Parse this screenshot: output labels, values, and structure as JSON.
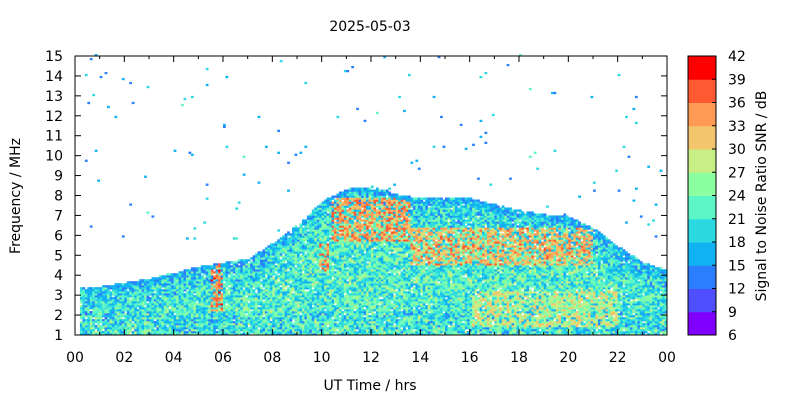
{
  "chart_data": {
    "type": "heatmap",
    "title": "2025-05-03",
    "xlabel": "UT Time / hrs",
    "ylabel": "Frequency / MHz",
    "colorbar_label": "Signal to Noise Ratio SNR / dB",
    "xlim": [
      0,
      24
    ],
    "ylim": [
      1,
      15
    ],
    "x_ticks": [
      "00",
      "02",
      "04",
      "06",
      "08",
      "10",
      "12",
      "14",
      "16",
      "18",
      "20",
      "22",
      "00"
    ],
    "y_ticks": [
      "1",
      "2",
      "3",
      "4",
      "5",
      "6",
      "7",
      "8",
      "9",
      "10",
      "11",
      "12",
      "13",
      "14",
      "15"
    ],
    "colorbar": {
      "min": 6,
      "max": 42,
      "ticks": [
        "6",
        "9",
        "12",
        "15",
        "18",
        "21",
        "24",
        "27",
        "30",
        "33",
        "36",
        "39",
        "42"
      ],
      "colors": [
        "#7f00ff",
        "#4f4fff",
        "#2a7fff",
        "#12b2f2",
        "#2cd9e0",
        "#5cf5c6",
        "#8cffa0",
        "#c8ee86",
        "#f3c66c",
        "#ff9a52",
        "#ff5a32",
        "#ff0000"
      ]
    },
    "grid": false,
    "upper_frequency_envelope_mhz": {
      "hours": [
        0,
        1,
        2,
        3,
        4,
        5,
        6,
        7,
        8,
        9,
        10,
        11,
        12,
        13,
        14,
        15,
        16,
        17,
        18,
        19,
        20,
        21,
        22,
        23,
        24
      ],
      "values": [
        3.3,
        3.4,
        3.6,
        3.8,
        4.1,
        4.4,
        4.6,
        4.8,
        5.6,
        6.5,
        7.7,
        8.3,
        8.4,
        8.0,
        7.8,
        7.8,
        7.8,
        7.5,
        7.2,
        7.0,
        6.9,
        6.3,
        5.4,
        4.6,
        4.2
      ]
    },
    "high_snr_regions": [
      {
        "hours": [
          5.4,
          5.9
        ],
        "mhz": [
          2.2,
          4.8
        ],
        "snr_db": 40
      },
      {
        "hours": [
          9.8,
          10.2
        ],
        "mhz": [
          4.2,
          5.5
        ],
        "snr_db": 39
      },
      {
        "hours": [
          10.3,
          13.5
        ],
        "mhz": [
          5.6,
          7.8
        ],
        "snr_db": 38
      },
      {
        "hours": [
          13.5,
          21.0
        ],
        "mhz": [
          4.5,
          6.3
        ],
        "snr_db": 37
      },
      {
        "hours": [
          16.0,
          22.0
        ],
        "mhz": [
          1.4,
          3.2
        ],
        "snr_db": 33
      }
    ]
  }
}
